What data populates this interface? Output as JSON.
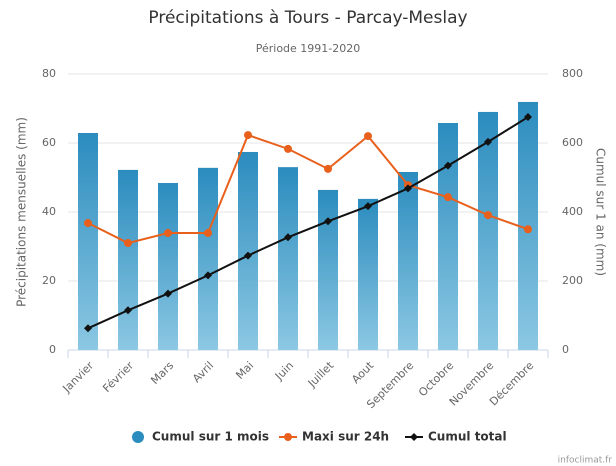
{
  "chart_data": {
    "type": "bar_line",
    "title": "Précipitations à Tours - Parcay-Meslay",
    "subtitle": "Période 1991-2020",
    "y_label": "Précipitations mensuelles (mm)",
    "y2_label": "Cumul sur 1 an (mm)",
    "credit": "infoclimat.fr",
    "categories": [
      "Janvier",
      "Février",
      "Mars",
      "Avril",
      "Mai",
      "Juin",
      "Juillet",
      "Aout",
      "Septembre",
      "Octobre",
      "Novembre",
      "Décembre"
    ],
    "ylim": [
      0,
      80
    ],
    "yticks": [
      0,
      20,
      40,
      60,
      80
    ],
    "y2lim": [
      0,
      800
    ],
    "y2ticks": [
      0,
      200,
      400,
      600,
      800
    ],
    "grid": true,
    "series": [
      {
        "name": "Cumul sur 1 mois",
        "kind": "bar",
        "color": "#2b8cbe",
        "values": [
          62.9,
          52.2,
          48.4,
          52.8,
          57.4,
          53.0,
          46.4,
          43.8,
          51.6,
          65.8,
          69.0,
          71.9
        ]
      },
      {
        "name": "Maxi sur 24h",
        "kind": "line",
        "color": "#e8601c",
        "values": [
          36.8,
          31.0,
          33.9,
          33.9,
          62.3,
          58.3,
          52.5,
          62.0,
          47.8,
          44.3,
          39.1,
          35.0
        ]
      },
      {
        "name": "Cumul total",
        "kind": "line",
        "axis": "y2",
        "color": "#111111",
        "values": [
          62.9,
          115.1,
          163.5,
          216.3,
          273.7,
          326.7,
          373.1,
          416.9,
          468.5,
          534.3,
          603.3,
          675.2
        ]
      }
    ]
  }
}
